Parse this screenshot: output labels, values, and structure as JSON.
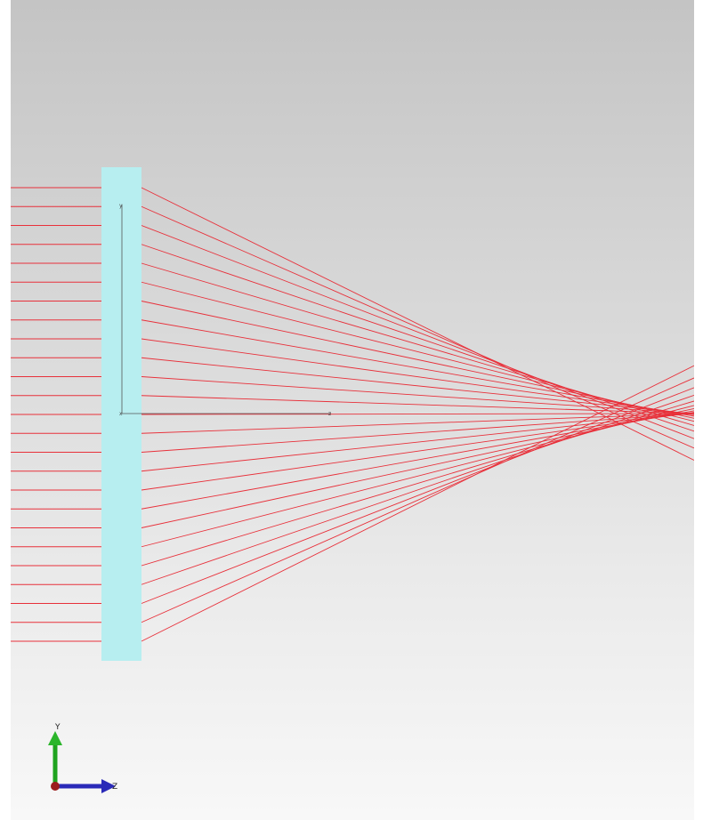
{
  "scene": {
    "background_top": "#c4c4c4",
    "background_bottom": "#f8f8f8",
    "ray_color": "#e8303a",
    "lens_color": "#b7eef0",
    "ray_count": 25
  },
  "local_axes": {
    "y_label": "y",
    "x_label": "x",
    "z_label": "z"
  },
  "triad": {
    "y_label": "Y",
    "z_label": "Z",
    "y_color": "#1fa31f",
    "z_color": "#2a2ab8",
    "x_color": "#9b1c1c"
  }
}
